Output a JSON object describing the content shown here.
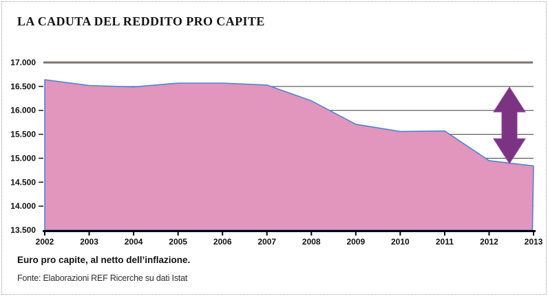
{
  "title": "LA CADUTA DEL REDDITO PRO CAPITE",
  "footer": {
    "note": "Euro pro capite, al netto dell’inflazione.",
    "source": "Fonte: Elaborazioni REF Ricerche su dati Istat"
  },
  "colors": {
    "area_fill": "#e295bd",
    "area_stroke": "#4e83d6",
    "arrow": "#7d3383",
    "arrow_edge": "#8d4492",
    "top_line": "#7a7370",
    "gridline": "#3c3c3c",
    "axis": "#000000",
    "tick": "#1a1a1a"
  },
  "chart_data": {
    "type": "area",
    "title": "LA CADUTA DEL REDDITO PRO CAPITE",
    "xlabel": "",
    "ylabel": "Euro pro capite, al netto dell’inflazione",
    "x": [
      "2002",
      "2003",
      "2004",
      "2005",
      "2006",
      "2007",
      "2008",
      "2009",
      "2010",
      "2011",
      "2012",
      "2013"
    ],
    "values": [
      16640,
      16520,
      16490,
      16570,
      16570,
      16530,
      16200,
      15710,
      15560,
      15570,
      14950,
      14840
    ],
    "ylim": [
      13500,
      17000
    ],
    "yticks": [
      {
        "label": "17.000",
        "value": 17000
      },
      {
        "label": "16.500",
        "value": 16500
      },
      {
        "label": "16.000",
        "value": 16000
      },
      {
        "label": "15.500",
        "value": 15500
      },
      {
        "label": "15.000",
        "value": 15000
      },
      {
        "label": "14.500",
        "value": 14500
      },
      {
        "label": "14.000",
        "value": 14000
      },
      {
        "label": "13.500",
        "value": 13500
      }
    ],
    "grid": true,
    "legend": false,
    "annotations": [
      "vertical double-headed arrow near 2012-2013 marking the income drop from about 16.500 to below 15.000"
    ]
  }
}
